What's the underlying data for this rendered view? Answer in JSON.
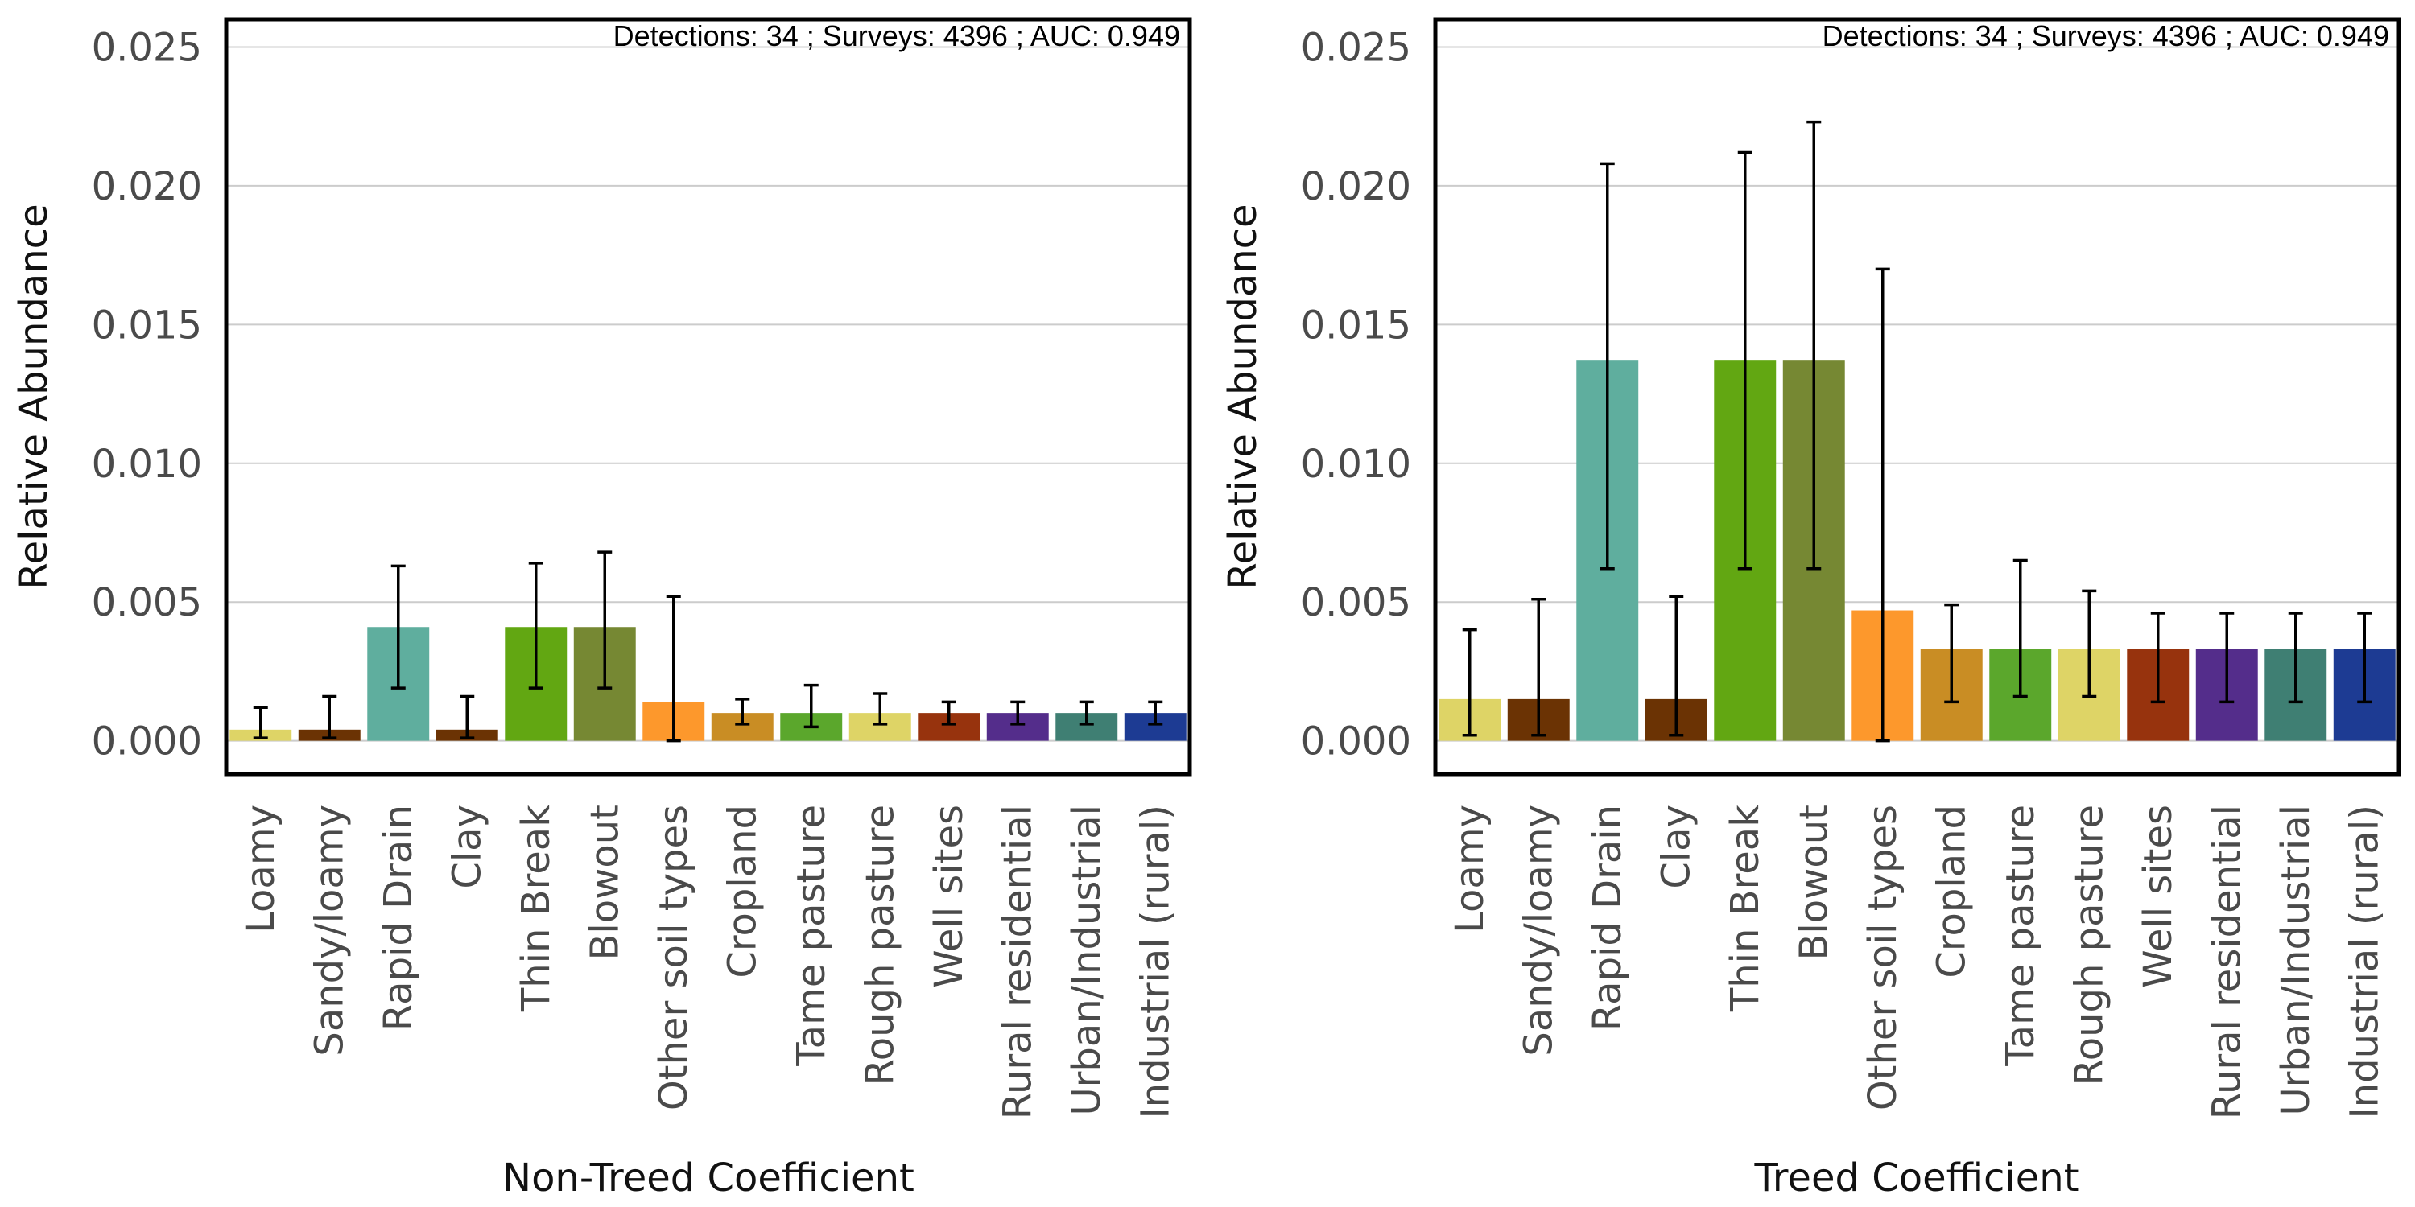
{
  "chart_data": [
    {
      "type": "bar",
      "title": "",
      "xlabel": "Non-Treed Coefficient",
      "ylabel": "Relative Abundance",
      "annotation": "Detections: 34 ; Surveys: 4396 ; AUC: 0.949",
      "ylim": [
        -0.0012,
        0.026
      ],
      "yticks": [
        0.0,
        0.005,
        0.01,
        0.015,
        0.02,
        0.025
      ],
      "ytick_labels": [
        "0.000",
        "0.005",
        "0.010",
        "0.015",
        "0.020",
        "0.025"
      ],
      "grid": "horizontal",
      "categories": [
        "Loamy",
        "Sandy/loamy",
        "Rapid Drain",
        "Clay",
        "Thin Break",
        "Blowout",
        "Other soil types",
        "Cropland",
        "Tame pasture",
        "Rough pasture",
        "Well sites",
        "Rural residential",
        "Urban/Industrial",
        "Industrial (rural)"
      ],
      "values": [
        0.0004,
        0.0004,
        0.0041,
        0.0004,
        0.0041,
        0.0041,
        0.0014,
        0.001,
        0.001,
        0.001,
        0.001,
        0.001,
        0.001,
        0.001
      ],
      "lower": [
        0.0001,
        0.0001,
        0.0019,
        0.0001,
        0.0019,
        0.0019,
        0.0,
        0.0006,
        0.0005,
        0.0006,
        0.0006,
        0.0006,
        0.0006,
        0.0006
      ],
      "upper": [
        0.0012,
        0.0016,
        0.0063,
        0.0016,
        0.0064,
        0.0068,
        0.0052,
        0.0015,
        0.002,
        0.0017,
        0.0014,
        0.0014,
        0.0014,
        0.0014
      ],
      "colors": [
        "#DED466",
        "#6B3304",
        "#5FAE9E",
        "#6B3304",
        "#62A712",
        "#768833",
        "#FD982C",
        "#C98D24",
        "#5BA72C",
        "#DED466",
        "#97330D",
        "#542D8B",
        "#3F7F73",
        "#1D3B93"
      ]
    },
    {
      "type": "bar",
      "title": "",
      "xlabel": "Treed Coefficient",
      "ylabel": "Relative Abundance",
      "annotation": "Detections: 34 ; Surveys: 4396 ; AUC: 0.949",
      "ylim": [
        -0.0012,
        0.026
      ],
      "yticks": [
        0.0,
        0.005,
        0.01,
        0.015,
        0.02,
        0.025
      ],
      "ytick_labels": [
        "0.000",
        "0.005",
        "0.010",
        "0.015",
        "0.020",
        "0.025"
      ],
      "grid": "horizontal",
      "categories": [
        "Loamy",
        "Sandy/loamy",
        "Rapid Drain",
        "Clay",
        "Thin Break",
        "Blowout",
        "Other soil types",
        "Cropland",
        "Tame pasture",
        "Rough pasture",
        "Well sites",
        "Rural residential",
        "Urban/Industrial",
        "Industrial (rural)"
      ],
      "values": [
        0.0015,
        0.0015,
        0.0137,
        0.0015,
        0.0137,
        0.0137,
        0.0047,
        0.0033,
        0.0033,
        0.0033,
        0.0033,
        0.0033,
        0.0033,
        0.0033
      ],
      "lower": [
        0.0002,
        0.0002,
        0.0062,
        0.0002,
        0.0062,
        0.0062,
        0.0,
        0.0014,
        0.0016,
        0.0016,
        0.0014,
        0.0014,
        0.0014,
        0.0014
      ],
      "upper": [
        0.004,
        0.0051,
        0.0208,
        0.0052,
        0.0212,
        0.0223,
        0.017,
        0.0049,
        0.0065,
        0.0054,
        0.0046,
        0.0046,
        0.0046,
        0.0046
      ],
      "colors": [
        "#DED466",
        "#6B3304",
        "#5FAE9E",
        "#6B3304",
        "#62A712",
        "#768833",
        "#FD982C",
        "#C98D24",
        "#5BA72C",
        "#DED466",
        "#97330D",
        "#542D8B",
        "#3F7F73",
        "#1D3B93"
      ]
    }
  ]
}
